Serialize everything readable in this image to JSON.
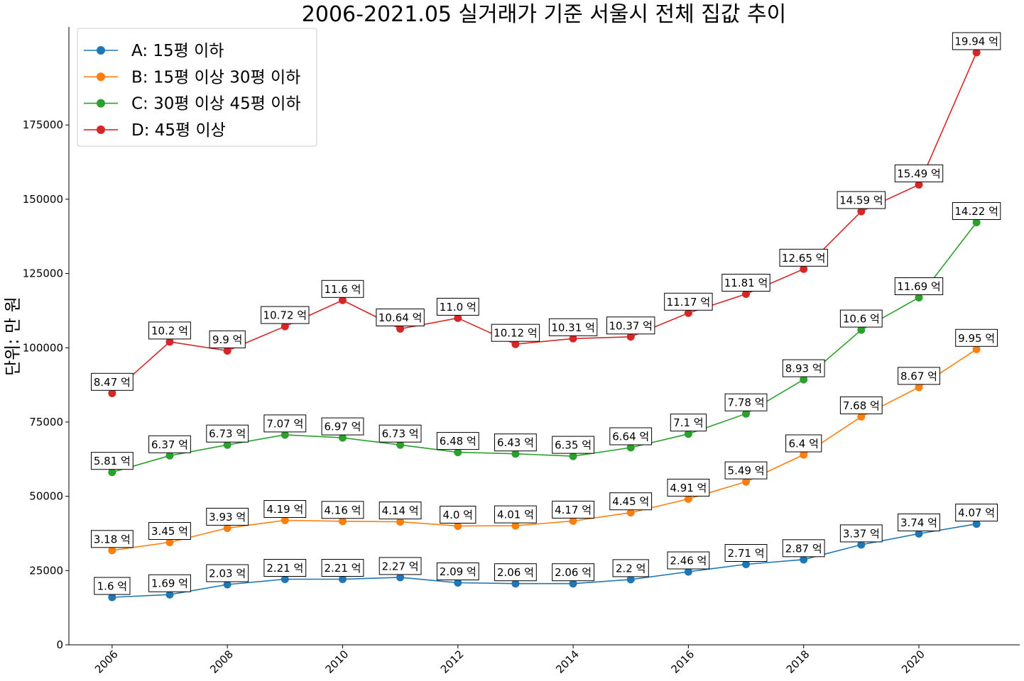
{
  "chart_data": {
    "type": "line",
    "title": "2006-2021.05 실거래가 기준 서울시 전체 집값 추이",
    "xlabel": "",
    "ylabel": "단위: 만 원",
    "x": [
      2006,
      2007,
      2008,
      2009,
      2010,
      2011,
      2012,
      2013,
      2014,
      2015,
      2016,
      2017,
      2018,
      2019,
      2020,
      2021
    ],
    "xticks": [
      2006,
      2008,
      2010,
      2012,
      2014,
      2016,
      2018,
      2020
    ],
    "yticks": [
      0,
      25000,
      50000,
      75000,
      100000,
      125000,
      150000,
      175000
    ],
    "xlim": [
      2005.25,
      2021.75
    ],
    "ylim": [
      0,
      208000
    ],
    "grid": false,
    "legend_position": "top-left",
    "series": [
      {
        "name": "A: 15평 이하",
        "color": "#1f77b4",
        "values": [
          16000,
          16900,
          20300,
          22100,
          22100,
          22700,
          20900,
          20600,
          20600,
          22000,
          24600,
          27100,
          28700,
          33700,
          37400,
          40700
        ],
        "labels": [
          "1.6 억",
          "1.69 억",
          "2.03 억",
          "2.21 억",
          "2.21 억",
          "2.27 억",
          "2.09 억",
          "2.06 억",
          "2.06 억",
          "2.2 억",
          "2.46 억",
          "2.71 억",
          "2.87 억",
          "3.37 억",
          "3.74 억",
          "4.07 억"
        ]
      },
      {
        "name": "B: 15평 이상 30평 이하",
        "color": "#ff7f0e",
        "values": [
          31800,
          34500,
          39300,
          41900,
          41600,
          41400,
          40000,
          40100,
          41700,
          44500,
          49100,
          54900,
          64000,
          76800,
          86700,
          99500
        ],
        "labels": [
          "3.18 억",
          "3.45 억",
          "3.93 억",
          "4.19 억",
          "4.16 억",
          "4.14 억",
          "4.0 억",
          "4.01 억",
          "4.17 억",
          "4.45 억",
          "4.91 억",
          "5.49 억",
          "6.4 억",
          "7.68 억",
          "8.67 억",
          "9.95 억"
        ]
      },
      {
        "name": "C: 30평 이상 45평 이하",
        "color": "#2ca02c",
        "values": [
          58100,
          63700,
          67300,
          70700,
          69700,
          67300,
          64800,
          64300,
          63500,
          66400,
          71000,
          77800,
          89300,
          106000,
          116900,
          142200
        ],
        "labels": [
          "5.81 억",
          "6.37 억",
          "6.73 억",
          "7.07 억",
          "6.97 억",
          "6.73 억",
          "6.48 억",
          "6.43 억",
          "6.35 억",
          "6.64 억",
          "7.1 억",
          "7.78 억",
          "8.93 억",
          "10.6 억",
          "11.69 억",
          "14.22 억"
        ]
      },
      {
        "name": "D: 45평 이상",
        "color": "#d62728",
        "values": [
          84700,
          102000,
          99000,
          107200,
          116000,
          106400,
          110000,
          101200,
          103100,
          103700,
          111700,
          118100,
          126500,
          145900,
          154900,
          199400
        ],
        "labels": [
          "8.47 억",
          "10.2 억",
          "9.9 억",
          "10.72 억",
          "11.6 억",
          "10.64 억",
          "11.0 억",
          "10.12 억",
          "10.31 억",
          "10.37 억",
          "11.17 억",
          "11.81 억",
          "12.65 억",
          "14.59 억",
          "15.49 억",
          "19.94 억"
        ]
      }
    ]
  }
}
